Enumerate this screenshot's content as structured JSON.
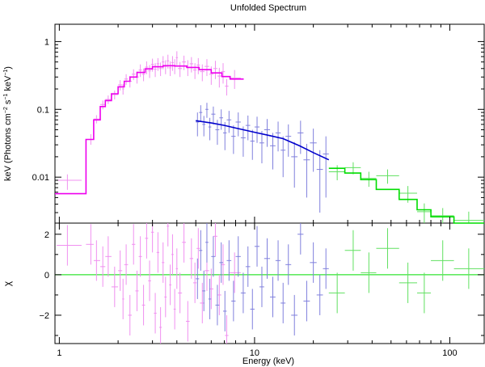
{
  "chart_data": {
    "type": "scatter",
    "title": "Unfolded Spectrum",
    "xlabel": "Energy (keV)",
    "x_scale": "log",
    "xlim": [
      0.95,
      150
    ],
    "x_ticks": [
      {
        "value": 1,
        "label": "1"
      },
      {
        "value": 10,
        "label": "10"
      },
      {
        "value": 100,
        "label": "100"
      }
    ],
    "panels": [
      {
        "name": "spectrum",
        "ylabel_main": "keV (Photons cm",
        "ylabel_sup1": "−2",
        "ylabel_mid": " s",
        "ylabel_sup2": "−1",
        "ylabel_mid2": " keV",
        "ylabel_sup3": "−1",
        "ylabel_end": ")",
        "y_scale": "log",
        "ylim": [
          0.0021,
          1.8
        ],
        "y_ticks": [
          {
            "value": 0.01,
            "label": "0.01"
          },
          {
            "value": 0.1,
            "label": "0.1"
          },
          {
            "value": 1,
            "label": "1"
          }
        ]
      },
      {
        "name": "residuals",
        "ylabel": "χ",
        "y_scale": "linear",
        "ylim": [
          -3.4,
          2.55
        ],
        "y_ticks": [
          {
            "value": -2,
            "label": "−2"
          },
          {
            "value": 0,
            "label": "0"
          },
          {
            "value": 2,
            "label": "2"
          }
        ]
      }
    ],
    "series": [
      {
        "color": "#ee00ee",
        "point_color": "#f090f0",
        "model_steps": [
          [
            0.95,
            1.37,
            0.0057
          ],
          [
            1.37,
            1.5,
            0.036
          ],
          [
            1.5,
            1.62,
            0.07
          ],
          [
            1.62,
            1.72,
            0.11
          ],
          [
            1.72,
            1.85,
            0.135
          ],
          [
            1.85,
            2.0,
            0.17
          ],
          [
            2.0,
            2.15,
            0.215
          ],
          [
            2.15,
            2.3,
            0.26
          ],
          [
            2.3,
            2.5,
            0.3
          ],
          [
            2.5,
            2.75,
            0.35
          ],
          [
            2.75,
            3.0,
            0.395
          ],
          [
            3.0,
            3.4,
            0.425
          ],
          [
            3.4,
            3.9,
            0.44
          ],
          [
            3.9,
            4.5,
            0.435
          ],
          [
            4.5,
            5.2,
            0.415
          ],
          [
            5.2,
            6.0,
            0.385
          ],
          [
            6.0,
            6.8,
            0.345
          ],
          [
            6.8,
            7.5,
            0.305
          ],
          [
            7.5,
            8.8,
            0.28
          ]
        ],
        "points": [
          {
            "x": 1.1,
            "y": 0.009,
            "ylo": 0.0065,
            "yhi": 0.011,
            "xlo": 0.97,
            "xhi": 1.3,
            "chi": 1.45
          },
          {
            "x": 1.45,
            "y": 0.036,
            "ylo": 0.03,
            "yhi": 0.043,
            "xlo": 1.37,
            "xhi": 1.5,
            "chi": 1.5
          },
          {
            "x": 1.55,
            "y": 0.072,
            "ylo": 0.062,
            "yhi": 0.082,
            "xlo": 1.5,
            "xhi": 1.62,
            "chi": 0.7
          },
          {
            "x": 1.67,
            "y": 0.118,
            "ylo": 0.1,
            "yhi": 0.135,
            "xlo": 1.62,
            "xhi": 1.72,
            "chi": 0.4
          },
          {
            "x": 1.78,
            "y": 0.14,
            "ylo": 0.12,
            "yhi": 0.16,
            "xlo": 1.72,
            "xhi": 1.85,
            "chi": 0.9
          },
          {
            "x": 1.92,
            "y": 0.165,
            "ylo": 0.14,
            "yhi": 0.19,
            "xlo": 1.85,
            "xhi": 2.0,
            "chi": -0.6
          },
          {
            "x": 2.05,
            "y": 0.23,
            "ylo": 0.19,
            "yhi": 0.27,
            "xlo": 2.0,
            "xhi": 2.1,
            "chi": 0.2
          },
          {
            "x": 2.12,
            "y": 0.2,
            "ylo": 0.165,
            "yhi": 0.235,
            "xlo": 2.1,
            "xhi": 2.15,
            "chi": -1.2
          },
          {
            "x": 2.2,
            "y": 0.28,
            "ylo": 0.23,
            "yhi": 0.33,
            "xlo": 2.15,
            "xhi": 2.25,
            "chi": 0.5
          },
          {
            "x": 2.3,
            "y": 0.26,
            "ylo": 0.21,
            "yhi": 0.31,
            "xlo": 2.25,
            "xhi": 2.35,
            "chi": -2.0
          },
          {
            "x": 2.4,
            "y": 0.33,
            "ylo": 0.27,
            "yhi": 0.39,
            "xlo": 2.35,
            "xhi": 2.45,
            "chi": 1.5
          },
          {
            "x": 2.5,
            "y": 0.3,
            "ylo": 0.24,
            "yhi": 0.36,
            "xlo": 2.45,
            "xhi": 2.55,
            "chi": -0.8
          },
          {
            "x": 2.6,
            "y": 0.38,
            "ylo": 0.3,
            "yhi": 0.46,
            "xlo": 2.55,
            "xhi": 2.65,
            "chi": 0.9
          },
          {
            "x": 2.7,
            "y": 0.33,
            "ylo": 0.26,
            "yhi": 0.4,
            "xlo": 2.65,
            "xhi": 2.75,
            "chi": -1.5
          },
          {
            "x": 2.8,
            "y": 0.42,
            "ylo": 0.33,
            "yhi": 0.51,
            "xlo": 2.75,
            "xhi": 2.85,
            "chi": 1.8
          },
          {
            "x": 2.9,
            "y": 0.37,
            "ylo": 0.29,
            "yhi": 0.45,
            "xlo": 2.85,
            "xhi": 2.95,
            "chi": -0.3
          },
          {
            "x": 3.0,
            "y": 0.46,
            "ylo": 0.36,
            "yhi": 0.56,
            "xlo": 2.95,
            "xhi": 3.05,
            "chi": 2.1
          },
          {
            "x": 3.1,
            "y": 0.39,
            "ylo": 0.3,
            "yhi": 0.48,
            "xlo": 3.05,
            "xhi": 3.15,
            "chi": -1.9
          },
          {
            "x": 3.2,
            "y": 0.47,
            "ylo": 0.37,
            "yhi": 0.57,
            "xlo": 3.15,
            "xhi": 3.25,
            "chi": 1.1
          },
          {
            "x": 3.3,
            "y": 0.4,
            "ylo": 0.31,
            "yhi": 0.49,
            "xlo": 3.25,
            "xhi": 3.35,
            "chi": -2.6
          },
          {
            "x": 3.4,
            "y": 0.5,
            "ylo": 0.39,
            "yhi": 0.61,
            "xlo": 3.35,
            "xhi": 3.45,
            "chi": 0.6
          },
          {
            "x": 3.5,
            "y": 0.43,
            "ylo": 0.33,
            "yhi": 0.53,
            "xlo": 3.45,
            "xhi": 3.55,
            "chi": -1.1
          },
          {
            "x": 3.6,
            "y": 0.52,
            "ylo": 0.4,
            "yhi": 0.64,
            "xlo": 3.55,
            "xhi": 3.65,
            "chi": 2.4
          },
          {
            "x": 3.7,
            "y": 0.41,
            "ylo": 0.31,
            "yhi": 0.51,
            "xlo": 3.65,
            "xhi": 3.75,
            "chi": -0.5
          },
          {
            "x": 3.8,
            "y": 0.49,
            "ylo": 0.37,
            "yhi": 0.61,
            "xlo": 3.75,
            "xhi": 3.85,
            "chi": 1.0
          },
          {
            "x": 3.9,
            "y": 0.44,
            "ylo": 0.33,
            "yhi": 0.55,
            "xlo": 3.85,
            "xhi": 3.95,
            "chi": -1.7
          },
          {
            "x": 4.0,
            "y": 0.58,
            "ylo": 0.45,
            "yhi": 0.72,
            "xlo": 3.95,
            "xhi": 4.05,
            "chi": 0.3
          },
          {
            "x": 4.15,
            "y": 0.4,
            "ylo": 0.3,
            "yhi": 0.5,
            "xlo": 4.05,
            "xhi": 4.25,
            "chi": -0.9
          },
          {
            "x": 4.35,
            "y": 0.5,
            "ylo": 0.38,
            "yhi": 0.62,
            "xlo": 4.25,
            "xhi": 4.45,
            "chi": 1.6
          },
          {
            "x": 4.55,
            "y": 0.42,
            "ylo": 0.31,
            "yhi": 0.53,
            "xlo": 4.45,
            "xhi": 4.65,
            "chi": -2.3
          },
          {
            "x": 4.75,
            "y": 0.47,
            "ylo": 0.35,
            "yhi": 0.59,
            "xlo": 4.65,
            "xhi": 4.85,
            "chi": 0.8
          },
          {
            "x": 4.95,
            "y": 0.38,
            "ylo": 0.28,
            "yhi": 0.48,
            "xlo": 4.85,
            "xhi": 5.05,
            "chi": -0.4
          },
          {
            "x": 5.15,
            "y": 0.45,
            "ylo": 0.33,
            "yhi": 0.57,
            "xlo": 5.05,
            "xhi": 5.25,
            "chi": 1.3
          },
          {
            "x": 5.4,
            "y": 0.36,
            "ylo": 0.26,
            "yhi": 0.46,
            "xlo": 5.25,
            "xhi": 5.55,
            "chi": -1.4
          },
          {
            "x": 5.7,
            "y": 0.43,
            "ylo": 0.31,
            "yhi": 0.55,
            "xlo": 5.55,
            "xhi": 5.85,
            "chi": 0.2
          },
          {
            "x": 6.0,
            "y": 0.33,
            "ylo": 0.23,
            "yhi": 0.43,
            "xlo": 5.85,
            "xhi": 6.15,
            "chi": -0.7
          },
          {
            "x": 6.3,
            "y": 0.4,
            "ylo": 0.28,
            "yhi": 0.52,
            "xlo": 6.15,
            "xhi": 6.45,
            "chi": 1.9
          },
          {
            "x": 6.6,
            "y": 0.31,
            "ylo": 0.21,
            "yhi": 0.41,
            "xlo": 6.45,
            "xhi": 6.75,
            "chi": -1.0
          },
          {
            "x": 6.9,
            "y": 0.36,
            "ylo": 0.24,
            "yhi": 0.48,
            "xlo": 6.75,
            "xhi": 7.05,
            "chi": 0.5
          },
          {
            "x": 7.2,
            "y": 0.22,
            "ylo": 0.16,
            "yhi": 0.28,
            "xlo": 7.05,
            "xhi": 7.35,
            "chi": -3.0
          },
          {
            "x": 7.9,
            "y": 0.29,
            "ylo": 0.2,
            "yhi": 0.38,
            "xlo": 7.4,
            "xhi": 8.5,
            "chi": 0.1
          }
        ]
      },
      {
        "color": "#0000cc",
        "point_color": "#8080dd",
        "model_line": [
          [
            5.0,
            0.068
          ],
          [
            6.0,
            0.063
          ],
          [
            7.0,
            0.058
          ],
          [
            8.0,
            0.053
          ],
          [
            10.0,
            0.046
          ],
          [
            12.0,
            0.041
          ],
          [
            14.0,
            0.037
          ],
          [
            17.0,
            0.029
          ],
          [
            20.0,
            0.023
          ],
          [
            24.0,
            0.018
          ]
        ],
        "points": [
          {
            "x": 5.1,
            "y": 0.065,
            "ylo": 0.04,
            "yhi": 0.09,
            "xlo": 5.0,
            "xhi": 5.2,
            "chi": -0.2
          },
          {
            "x": 5.3,
            "y": 0.09,
            "ylo": 0.065,
            "yhi": 0.115,
            "xlo": 5.2,
            "xhi": 5.4,
            "chi": 1.2
          },
          {
            "x": 5.5,
            "y": 0.06,
            "ylo": 0.04,
            "yhi": 0.08,
            "xlo": 5.4,
            "xhi": 5.6,
            "chi": -0.8
          },
          {
            "x": 5.7,
            "y": 0.1,
            "ylo": 0.075,
            "yhi": 0.125,
            "xlo": 5.6,
            "xhi": 5.8,
            "chi": 1.6
          },
          {
            "x": 5.9,
            "y": 0.055,
            "ylo": 0.035,
            "yhi": 0.075,
            "xlo": 5.8,
            "xhi": 6.0,
            "chi": -1.2
          },
          {
            "x": 6.15,
            "y": 0.085,
            "ylo": 0.06,
            "yhi": 0.11,
            "xlo": 6.0,
            "xhi": 6.3,
            "chi": 0.9
          },
          {
            "x": 6.45,
            "y": 0.05,
            "ylo": 0.03,
            "yhi": 0.07,
            "xlo": 6.3,
            "xhi": 6.6,
            "chi": -1.5
          },
          {
            "x": 6.75,
            "y": 0.075,
            "ylo": 0.05,
            "yhi": 0.1,
            "xlo": 6.6,
            "xhi": 6.9,
            "chi": 0.6
          },
          {
            "x": 7.05,
            "y": 0.045,
            "ylo": 0.025,
            "yhi": 0.065,
            "xlo": 6.9,
            "xhi": 7.2,
            "chi": -1.8
          },
          {
            "x": 7.4,
            "y": 0.07,
            "ylo": 0.045,
            "yhi": 0.095,
            "xlo": 7.2,
            "xhi": 7.6,
            "chi": 0.7
          },
          {
            "x": 7.8,
            "y": 0.04,
            "ylo": 0.022,
            "yhi": 0.058,
            "xlo": 7.6,
            "xhi": 8.0,
            "chi": -1.3
          },
          {
            "x": 8.25,
            "y": 0.065,
            "ylo": 0.04,
            "yhi": 0.09,
            "xlo": 8.0,
            "xhi": 8.5,
            "chi": 0.9
          },
          {
            "x": 8.75,
            "y": 0.038,
            "ylo": 0.02,
            "yhi": 0.056,
            "xlo": 8.5,
            "xhi": 9.0,
            "chi": -0.9
          },
          {
            "x": 9.25,
            "y": 0.058,
            "ylo": 0.035,
            "yhi": 0.081,
            "xlo": 9.0,
            "xhi": 9.5,
            "chi": 0.4
          },
          {
            "x": 9.75,
            "y": 0.034,
            "ylo": 0.018,
            "yhi": 0.05,
            "xlo": 9.5,
            "xhi": 10.0,
            "chi": -1.7
          },
          {
            "x": 10.3,
            "y": 0.055,
            "ylo": 0.032,
            "yhi": 0.078,
            "xlo": 10.0,
            "xhi": 10.6,
            "chi": 1.4
          },
          {
            "x": 10.9,
            "y": 0.032,
            "ylo": 0.016,
            "yhi": 0.048,
            "xlo": 10.6,
            "xhi": 11.2,
            "chi": -0.6
          },
          {
            "x": 11.6,
            "y": 0.05,
            "ylo": 0.028,
            "yhi": 0.072,
            "xlo": 11.2,
            "xhi": 12.0,
            "chi": 0.8
          },
          {
            "x": 12.4,
            "y": 0.029,
            "ylo": 0.013,
            "yhi": 0.045,
            "xlo": 12.0,
            "xhi": 12.8,
            "chi": -1.1
          },
          {
            "x": 13.2,
            "y": 0.045,
            "ylo": 0.024,
            "yhi": 0.066,
            "xlo": 12.8,
            "xhi": 13.6,
            "chi": 0.7
          },
          {
            "x": 14.0,
            "y": 0.025,
            "ylo": 0.01,
            "yhi": 0.04,
            "xlo": 13.6,
            "xhi": 14.4,
            "chi": -1.4
          },
          {
            "x": 14.9,
            "y": 0.04,
            "ylo": 0.02,
            "yhi": 0.06,
            "xlo": 14.4,
            "xhi": 15.4,
            "chi": 0.5
          },
          {
            "x": 16.0,
            "y": 0.02,
            "ylo": 0.007,
            "yhi": 0.033,
            "xlo": 15.4,
            "xhi": 16.6,
            "chi": -2.0
          },
          {
            "x": 17.2,
            "y": 0.045,
            "ylo": 0.022,
            "yhi": 0.068,
            "xlo": 16.6,
            "xhi": 17.8,
            "chi": 2.0
          },
          {
            "x": 18.5,
            "y": 0.018,
            "ylo": 0.005,
            "yhi": 0.031,
            "xlo": 17.8,
            "xhi": 19.2,
            "chi": -1.3
          },
          {
            "x": 20.0,
            "y": 0.032,
            "ylo": 0.012,
            "yhi": 0.052,
            "xlo": 19.2,
            "xhi": 20.8,
            "chi": 0.6
          },
          {
            "x": 21.6,
            "y": 0.013,
            "ylo": 0.003,
            "yhi": 0.025,
            "xlo": 20.8,
            "xhi": 22.4,
            "chi": -1.0
          },
          {
            "x": 23.2,
            "y": 0.022,
            "ylo": 0.005,
            "yhi": 0.04,
            "xlo": 22.4,
            "xhi": 24.0,
            "chi": 0.3
          }
        ]
      },
      {
        "color": "#00dd00",
        "point_color": "#60e060",
        "model_steps": [
          [
            24.0,
            29.0,
            0.0135
          ],
          [
            29.0,
            35.0,
            0.0115
          ],
          [
            35.0,
            42.0,
            0.0092
          ],
          [
            42.0,
            55.0,
            0.0066
          ],
          [
            55.0,
            68.0,
            0.0047
          ],
          [
            68.0,
            80.0,
            0.0033
          ],
          [
            80.0,
            105.0,
            0.0026
          ],
          [
            105.0,
            150.0,
            0.0019
          ]
        ],
        "points": [
          {
            "x": 26.5,
            "y": 0.012,
            "ylo": 0.009,
            "yhi": 0.015,
            "xlo": 24.0,
            "xhi": 29.0,
            "chi": -0.9
          },
          {
            "x": 32.0,
            "y": 0.0138,
            "ylo": 0.011,
            "yhi": 0.0166,
            "xlo": 29.0,
            "xhi": 35.0,
            "chi": 1.2
          },
          {
            "x": 38.5,
            "y": 0.0096,
            "ylo": 0.0072,
            "yhi": 0.012,
            "xlo": 35.0,
            "xhi": 42.0,
            "chi": 0.1
          },
          {
            "x": 48.0,
            "y": 0.0105,
            "ylo": 0.008,
            "yhi": 0.013,
            "xlo": 42.0,
            "xhi": 55.0,
            "chi": 1.3
          },
          {
            "x": 61.0,
            "y": 0.0058,
            "ylo": 0.0042,
            "yhi": 0.0074,
            "xlo": 55.0,
            "xhi": 68.0,
            "chi": -0.4
          },
          {
            "x": 74.0,
            "y": 0.0031,
            "ylo": 0.0021,
            "yhi": 0.0041,
            "xlo": 68.0,
            "xhi": 80.0,
            "chi": -0.9
          },
          {
            "x": 92.0,
            "y": 0.0027,
            "ylo": 0.0019,
            "yhi": 0.0035,
            "xlo": 80.0,
            "xhi": 105.0,
            "chi": 0.7
          },
          {
            "x": 125.0,
            "y": 0.0023,
            "ylo": 0.0015,
            "yhi": 0.0031,
            "xlo": 105.0,
            "xhi": 150.0,
            "chi": 0.3
          }
        ]
      }
    ],
    "zero_line_color": "#00dd00"
  }
}
